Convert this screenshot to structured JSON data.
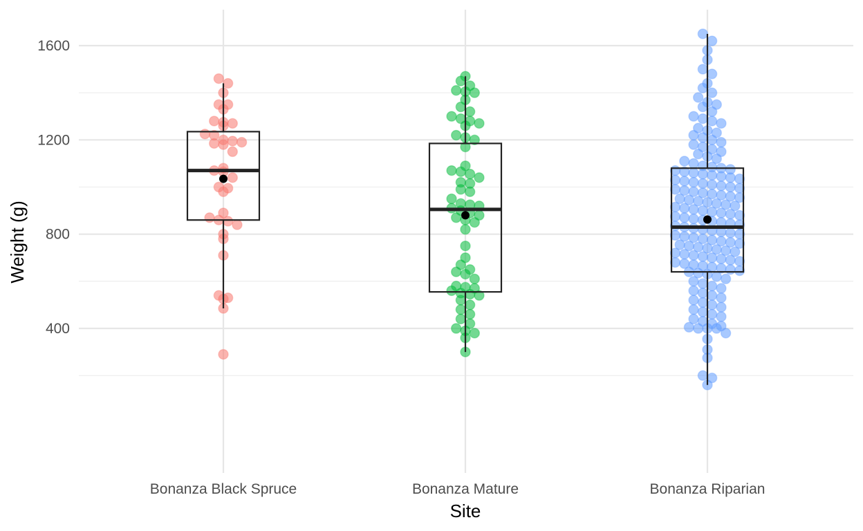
{
  "chart_data": {
    "type": "boxplot",
    "xlabel": "Site",
    "ylabel": "Weight (g)",
    "ylim": [
      90,
      1680
    ],
    "yticks": [
      400,
      800,
      1200,
      1600
    ],
    "y_minor_ticks": [
      200,
      600,
      1000,
      1400
    ],
    "grid": true,
    "legend": "none",
    "categories": [
      "Bonanza Black Spruce",
      "Bonanza Mature",
      "Bonanza Riparian"
    ],
    "colors": [
      "#F8766D",
      "#00BA38",
      "#619CFF"
    ],
    "boxes": [
      {
        "category": "Bonanza Black Spruce",
        "q1": 860,
        "median": 1070,
        "q3": 1235,
        "whisker_low": 485,
        "whisker_high": 1440,
        "mean": 1035
      },
      {
        "category": "Bonanza Mature",
        "q1": 555,
        "median": 905,
        "q3": 1185,
        "whisker_low": 300,
        "whisker_high": 1470,
        "mean": 880
      },
      {
        "category": "Bonanza Riparian",
        "q1": 640,
        "median": 830,
        "q3": 1080,
        "whisker_low": 160,
        "whisker_high": 1650,
        "mean": 862
      }
    ],
    "points": [
      [
        1460,
        1440,
        1400,
        1350,
        1350,
        1330,
        1280,
        1275,
        1270,
        1260,
        1225,
        1220,
        1200,
        1195,
        1190,
        1185,
        1180,
        1150,
        1080,
        1070,
        1065,
        1040,
        1000,
        995,
        980,
        890,
        870,
        860,
        855,
        840,
        800,
        780,
        710,
        540,
        530,
        525,
        485,
        290
      ],
      [
        1470,
        1450,
        1430,
        1410,
        1405,
        1400,
        1370,
        1340,
        1320,
        1300,
        1290,
        1280,
        1270,
        1260,
        1220,
        1210,
        1200,
        1170,
        1090,
        1070,
        1065,
        1055,
        1040,
        1020,
        1015,
        990,
        980,
        950,
        930,
        925,
        920,
        910,
        900,
        890,
        880,
        870,
        860,
        850,
        820,
        750,
        700,
        670,
        650,
        640,
        630,
        610,
        580,
        575,
        570,
        560,
        550,
        545,
        540,
        520,
        500,
        480,
        460,
        440,
        420,
        400,
        390,
        380,
        360,
        300
      ],
      [
        1650,
        1620,
        1580,
        1540,
        1500,
        1480,
        1440,
        1420,
        1400,
        1380,
        1360,
        1350,
        1340,
        1320,
        1300,
        1290,
        1280,
        1270,
        1250,
        1240,
        1230,
        1220,
        1210,
        1200,
        1190,
        1180,
        1170,
        1160,
        1150,
        1140,
        1130,
        1120,
        1110,
        1100,
        1090,
        1085,
        1080,
        1075,
        1070,
        1065,
        1060,
        1055,
        1050,
        1045,
        1040,
        1035,
        1030,
        1025,
        1020,
        1015,
        1010,
        1005,
        1000,
        995,
        990,
        985,
        980,
        975,
        970,
        965,
        960,
        955,
        950,
        945,
        940,
        935,
        930,
        925,
        920,
        915,
        910,
        905,
        900,
        895,
        890,
        885,
        880,
        875,
        870,
        865,
        860,
        855,
        850,
        845,
        840,
        835,
        830,
        825,
        820,
        815,
        810,
        805,
        800,
        795,
        790,
        785,
        780,
        775,
        770,
        765,
        760,
        755,
        750,
        745,
        740,
        735,
        730,
        725,
        720,
        715,
        710,
        705,
        700,
        695,
        690,
        685,
        680,
        675,
        670,
        665,
        660,
        655,
        650,
        645,
        640,
        635,
        630,
        620,
        610,
        600,
        590,
        580,
        570,
        560,
        550,
        540,
        530,
        520,
        510,
        500,
        490,
        480,
        470,
        460,
        450,
        440,
        430,
        420,
        410,
        405,
        400,
        400,
        400,
        380,
        355,
        310,
        275,
        200,
        190,
        160
      ]
    ]
  }
}
